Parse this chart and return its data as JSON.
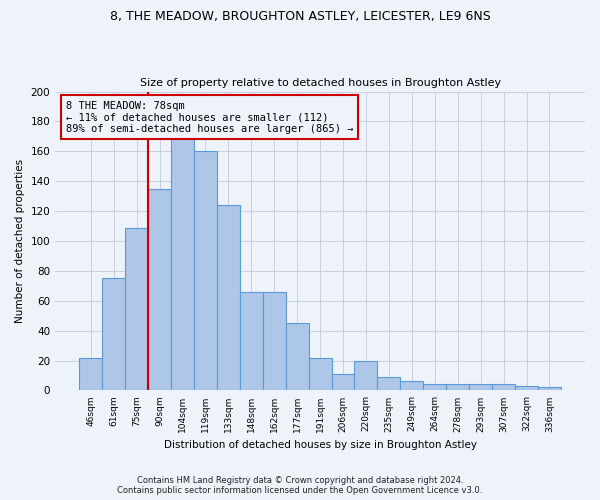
{
  "title": "8, THE MEADOW, BROUGHTON ASTLEY, LEICESTER, LE9 6NS",
  "subtitle": "Size of property relative to detached houses in Broughton Astley",
  "xlabel": "Distribution of detached houses by size in Broughton Astley",
  "ylabel": "Number of detached properties",
  "categories": [
    "46sqm",
    "61sqm",
    "75sqm",
    "90sqm",
    "104sqm",
    "119sqm",
    "133sqm",
    "148sqm",
    "162sqm",
    "177sqm",
    "191sqm",
    "206sqm",
    "220sqm",
    "235sqm",
    "249sqm",
    "264sqm",
    "278sqm",
    "293sqm",
    "307sqm",
    "322sqm",
    "336sqm"
  ],
  "values": [
    22,
    75,
    109,
    135,
    170,
    160,
    124,
    66,
    66,
    45,
    22,
    11,
    20,
    9,
    6,
    4,
    4,
    4,
    4,
    3,
    2
  ],
  "bar_color": "#aec6e8",
  "bar_edge_color": "#5b9bd5",
  "ylim": [
    0,
    200
  ],
  "yticks": [
    0,
    20,
    40,
    60,
    80,
    100,
    120,
    140,
    160,
    180,
    200
  ],
  "property_label": "8 THE MEADOW: 78sqm",
  "annotation_line1": "← 11% of detached houses are smaller (112)",
  "annotation_line2": "89% of semi-detached houses are larger (865) →",
  "vline_color": "#cc0000",
  "annotation_box_color": "#cc0000",
  "bg_color": "#eef2f9",
  "footer1": "Contains HM Land Registry data © Crown copyright and database right 2024.",
  "footer2": "Contains public sector information licensed under the Open Government Licence v3.0."
}
